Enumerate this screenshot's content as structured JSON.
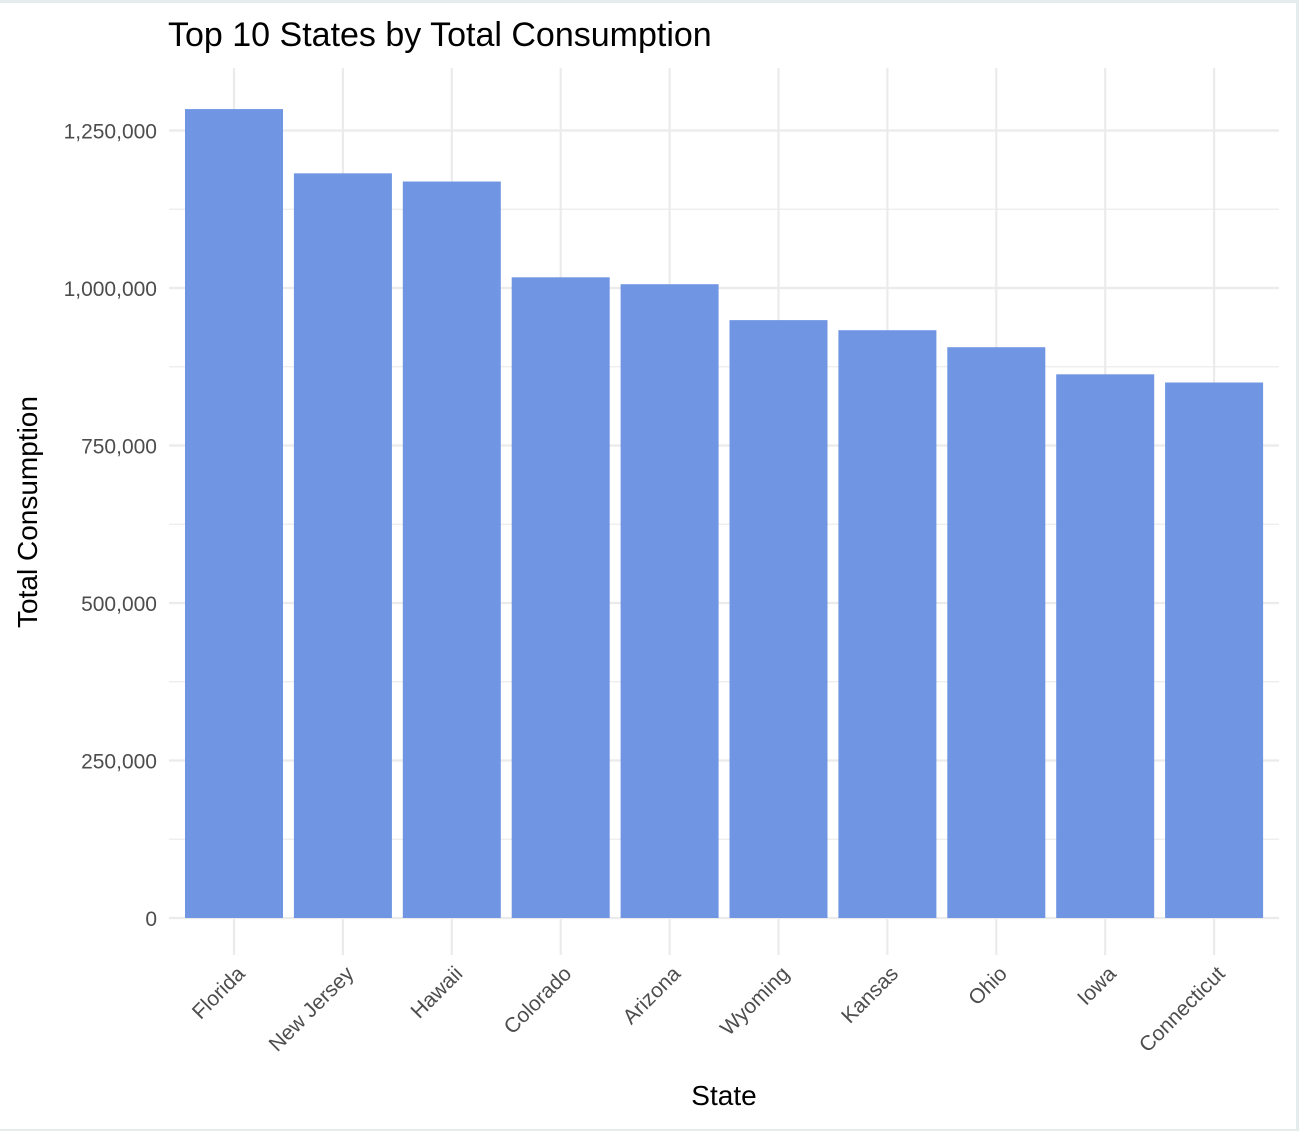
{
  "chart_data": {
    "type": "bar",
    "title": "Top 10 States by Total Consumption",
    "xlabel": "State",
    "ylabel": "Total Consumption",
    "categories": [
      "Florida",
      "New Jersey",
      "Hawaii",
      "Colorado",
      "Arizona",
      "Wyoming",
      "Kansas",
      "Ohio",
      "Iowa",
      "Connecticut"
    ],
    "values": [
      1284000,
      1182000,
      1169000,
      1017000,
      1006000,
      949000,
      933000,
      906000,
      863000,
      850000
    ],
    "ylim": [
      0,
      1350000
    ],
    "yticks": [
      0,
      250000,
      500000,
      750000,
      1000000,
      1250000
    ],
    "ytick_labels": [
      "0",
      "250,000",
      "500,000",
      "750,000",
      "1,000,000",
      "1,250,000"
    ],
    "bar_color": "#6f95e3",
    "grid": true,
    "legend": "none"
  }
}
